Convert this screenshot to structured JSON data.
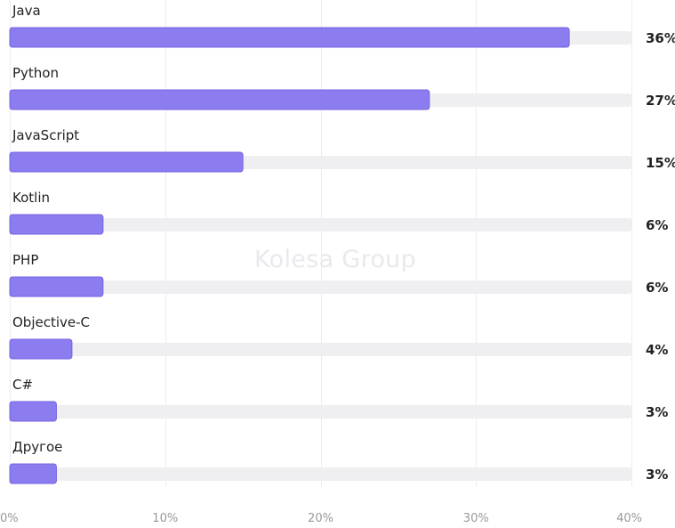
{
  "chart_data": {
    "type": "bar",
    "orientation": "horizontal",
    "categories": [
      "Java",
      "Python",
      "JavaScript",
      "Kotlin",
      "PHP",
      "Objective-C",
      "C#",
      "Другое"
    ],
    "values": [
      36,
      27,
      15,
      6,
      6,
      4,
      3,
      3
    ],
    "value_labels": [
      "36%",
      "27%",
      "15%",
      "6%",
      "6%",
      "4%",
      "3%",
      "3%"
    ],
    "xlim": [
      0,
      40
    ],
    "xticks": [
      0,
      10,
      20,
      30,
      40
    ],
    "xtick_labels": [
      "0%",
      "10%",
      "20%",
      "30%",
      "40%"
    ],
    "grid": true,
    "colors": {
      "bar": "#8b7cf0",
      "bar_border": "#7464e0",
      "track": "#efeff2",
      "grid": "#ececf0",
      "label": "#222222",
      "tick": "#999999"
    }
  },
  "watermark": "Kolesa Group"
}
